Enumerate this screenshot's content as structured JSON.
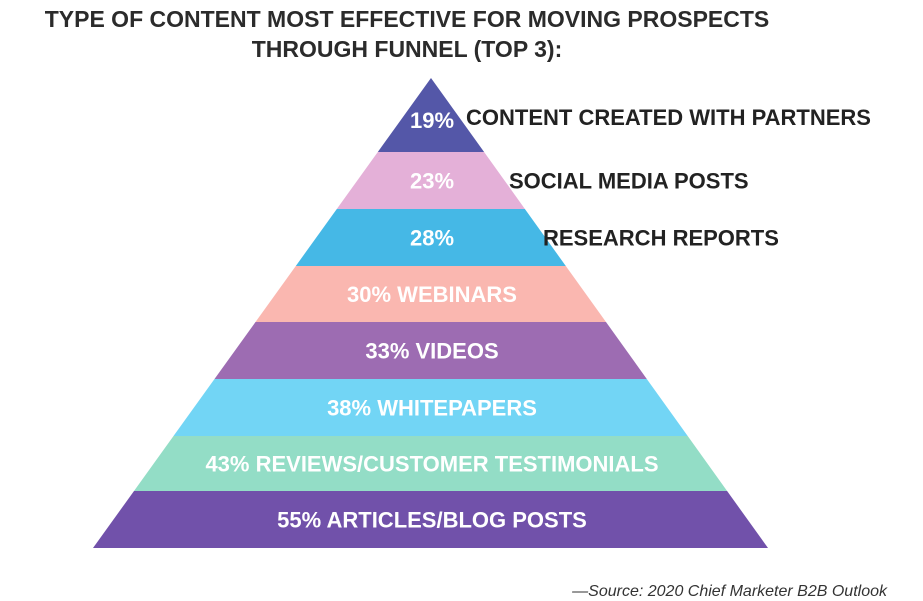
{
  "chart_data": {
    "type": "funnel",
    "title_lines": [
      "TYPE OF CONTENT MOST EFFECTIVE FOR MOVING PROSPECTS",
      "THROUGH FUNNEL (TOP 3):"
    ],
    "source": "—Source: 2020 Chief Marketer B2B Outlook",
    "levels": [
      {
        "percent_label": "19%",
        "category": "CONTENT CREATED WITH PARTNERS",
        "value": 19,
        "color": "#5457a8",
        "label_outside": true
      },
      {
        "percent_label": "23%",
        "category": "SOCIAL MEDIA POSTS",
        "value": 23,
        "color": "#e4b0d8",
        "label_outside": true
      },
      {
        "percent_label": "28%",
        "category": "RESEARCH REPORTS",
        "value": 28,
        "color": "#45b8e6",
        "label_outside": true
      },
      {
        "percent_label": "30% WEBINARS",
        "category": "",
        "value": 30,
        "color": "#fab7b0",
        "label_outside": false
      },
      {
        "percent_label": "33% VIDEOS",
        "category": "",
        "value": 33,
        "color": "#9d6cb2",
        "label_outside": false
      },
      {
        "percent_label": "38%  WHITEPAPERS",
        "category": "",
        "value": 38,
        "color": "#72d5f5",
        "label_outside": false
      },
      {
        "percent_label": "43% REVIEWS/CUSTOMER TESTIMONIALS",
        "category": "",
        "value": 43,
        "color": "#93ddc6",
        "label_outside": false
      },
      {
        "percent_label": "55%  ARTICLES/BLOG POSTS",
        "category": "",
        "value": 55,
        "color": "#7151aa",
        "label_outside": false
      }
    ]
  }
}
